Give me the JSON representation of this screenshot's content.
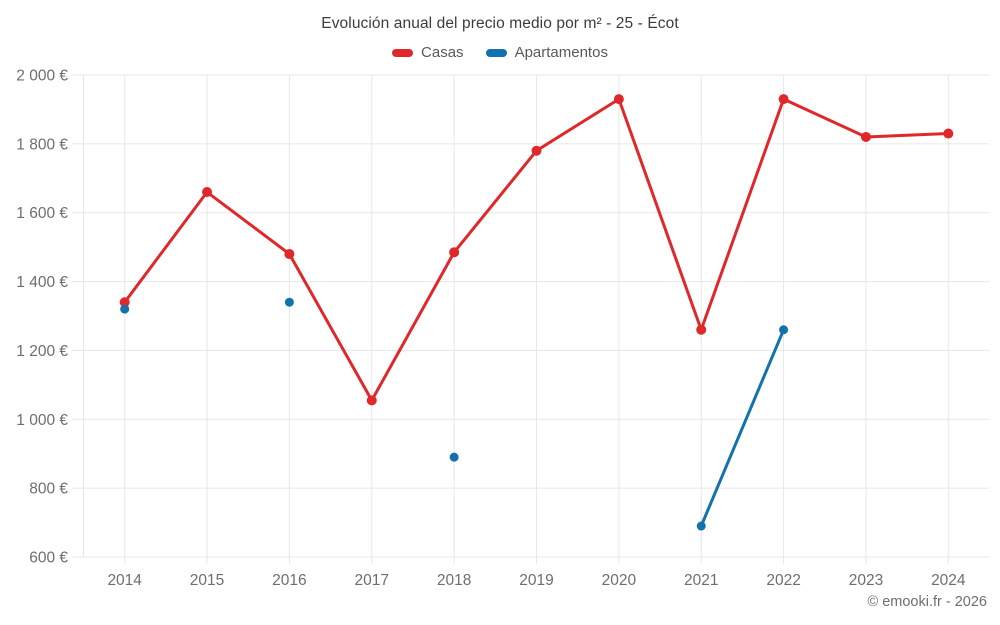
{
  "title": "Evolución anual del precio medio por m² - 25 - Écot",
  "legend": {
    "items": [
      {
        "id": "casas",
        "label": "Casas",
        "color": "#e0282b"
      },
      {
        "id": "apartamentos",
        "label": "Apartamentos",
        "color": "#1272ad"
      }
    ]
  },
  "footer": {
    "credit": "© emooki.fr - 2026"
  },
  "colors": {
    "background": "#ffffff",
    "grid": "#e7e7e7",
    "axis_text": "#6e6e6e",
    "title_text": "#3c3c3c"
  },
  "chart_data": {
    "type": "line",
    "title": "Evolución anual del precio medio por m² - 25 - Écot",
    "categories": [
      "2014",
      "2015",
      "2016",
      "2017",
      "2018",
      "2019",
      "2020",
      "2021",
      "2022",
      "2023",
      "2024"
    ],
    "series": [
      {
        "name": "Casas",
        "color": "#e0282b",
        "marker_radius": 5,
        "values": [
          1340,
          1660,
          1480,
          1055,
          1485,
          1780,
          1930,
          1260,
          1930,
          1820,
          1830
        ]
      },
      {
        "name": "Apartamentos",
        "color": "#1272ad",
        "marker_radius": 4.5,
        "values": [
          1320,
          null,
          1340,
          null,
          890,
          null,
          null,
          690,
          1260,
          null,
          null
        ]
      }
    ],
    "xlabel": "",
    "ylabel": "",
    "ylim": [
      600,
      2000
    ],
    "ytick_step": 200,
    "ytick_suffix": " €",
    "grid": true,
    "legend_position": "top"
  }
}
